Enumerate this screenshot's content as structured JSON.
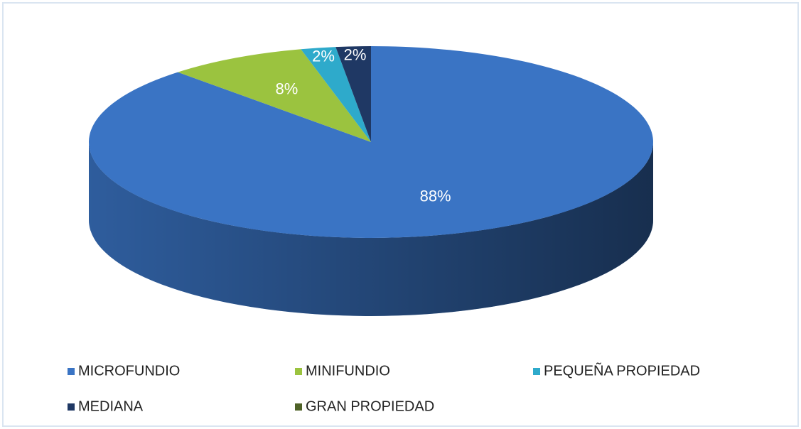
{
  "chart_data": {
    "type": "pie3d",
    "categories": [
      "MICROFUNDIO",
      "MINIFUNDIO",
      "PEQUEÑA PROPIEDAD",
      "MEDIANA",
      "GRAN PROPIEDAD"
    ],
    "values": [
      88,
      8,
      2,
      2,
      0
    ],
    "value_labels": [
      "88%",
      "8%",
      "2%",
      "2%",
      null
    ],
    "colors": [
      "#3a74c4",
      "#9bc33f",
      "#2eaacb",
      "#1f3864",
      "#4f6228"
    ],
    "legend": "bottom"
  }
}
